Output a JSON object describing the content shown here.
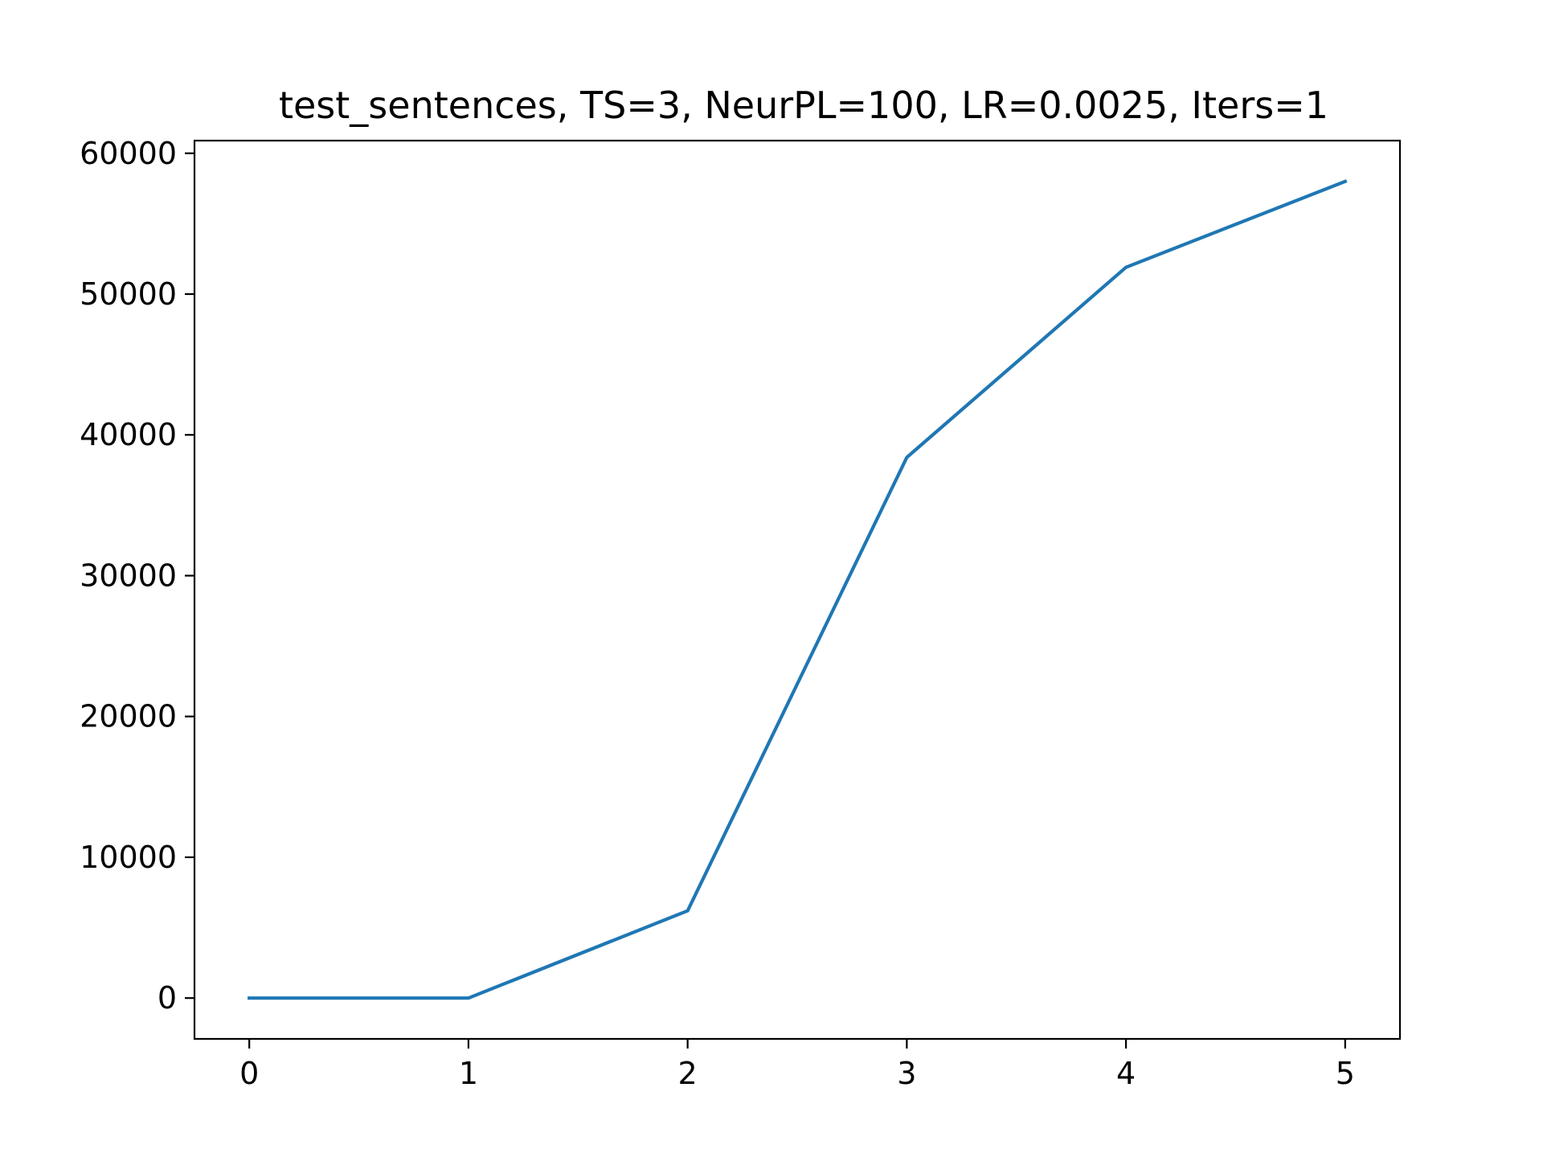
{
  "chart_data": {
    "type": "line",
    "title": "test_sentences, TS=3, NeurPL=100, LR=0.0025, Iters=1",
    "xlabel": "",
    "ylabel": "",
    "x": [
      0,
      1,
      2,
      3,
      4,
      5
    ],
    "series": [
      {
        "values": [
          0,
          0,
          6200,
          38400,
          51900,
          58000
        ],
        "color": "#1f77b4"
      }
    ],
    "xlim": [
      -0.25,
      5.25
    ],
    "ylim": [
      -2900,
      60900
    ],
    "xticks": [
      0,
      1,
      2,
      3,
      4,
      5
    ],
    "xtick_labels": [
      "0",
      "1",
      "2",
      "3",
      "4",
      "5"
    ],
    "yticks": [
      0,
      10000,
      20000,
      30000,
      40000,
      50000,
      60000
    ],
    "ytick_labels": [
      "0",
      "10000",
      "20000",
      "30000",
      "40000",
      "50000",
      "60000"
    ],
    "grid": false,
    "legend": "none"
  }
}
